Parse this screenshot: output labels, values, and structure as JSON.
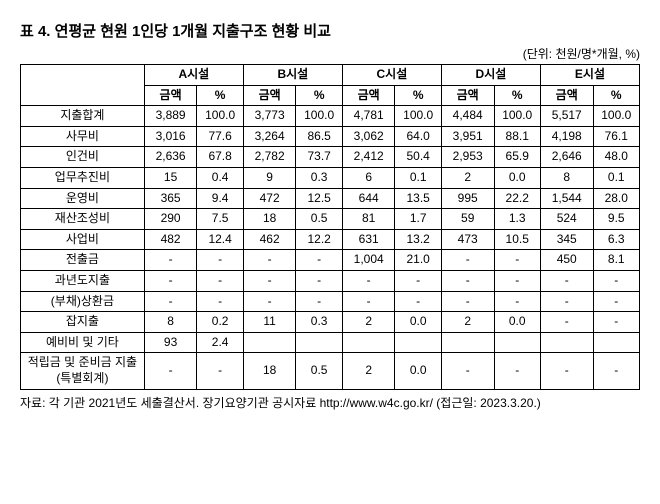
{
  "title": "표 4. 연평균 현원 1인당 1개월 지출구조 현황 비교",
  "unit": "(단위: 천원/명*개월, %)",
  "facilities": [
    "A시설",
    "B시설",
    "C시설",
    "D시설",
    "E시설"
  ],
  "subheaders": {
    "amount": "금액",
    "pct": "%"
  },
  "rows": [
    {
      "label": "지출합계",
      "vals": [
        [
          "3,889",
          "100.0"
        ],
        [
          "3,773",
          "100.0"
        ],
        [
          "4,781",
          "100.0"
        ],
        [
          "4,484",
          "100.0"
        ],
        [
          "5,517",
          "100.0"
        ]
      ]
    },
    {
      "label": "사무비",
      "vals": [
        [
          "3,016",
          "77.6"
        ],
        [
          "3,264",
          "86.5"
        ],
        [
          "3,062",
          "64.0"
        ],
        [
          "3,951",
          "88.1"
        ],
        [
          "4,198",
          "76.1"
        ]
      ]
    },
    {
      "label": "인건비",
      "vals": [
        [
          "2,636",
          "67.8"
        ],
        [
          "2,782",
          "73.7"
        ],
        [
          "2,412",
          "50.4"
        ],
        [
          "2,953",
          "65.9"
        ],
        [
          "2,646",
          "48.0"
        ]
      ]
    },
    {
      "label": "업무추진비",
      "vals": [
        [
          "15",
          "0.4"
        ],
        [
          "9",
          "0.3"
        ],
        [
          "6",
          "0.1"
        ],
        [
          "2",
          "0.0"
        ],
        [
          "8",
          "0.1"
        ]
      ]
    },
    {
      "label": "운영비",
      "vals": [
        [
          "365",
          "9.4"
        ],
        [
          "472",
          "12.5"
        ],
        [
          "644",
          "13.5"
        ],
        [
          "995",
          "22.2"
        ],
        [
          "1,544",
          "28.0"
        ]
      ]
    },
    {
      "label": "재산조성비",
      "vals": [
        [
          "290",
          "7.5"
        ],
        [
          "18",
          "0.5"
        ],
        [
          "81",
          "1.7"
        ],
        [
          "59",
          "1.3"
        ],
        [
          "524",
          "9.5"
        ]
      ]
    },
    {
      "label": "사업비",
      "vals": [
        [
          "482",
          "12.4"
        ],
        [
          "462",
          "12.2"
        ],
        [
          "631",
          "13.2"
        ],
        [
          "473",
          "10.5"
        ],
        [
          "345",
          "6.3"
        ]
      ]
    },
    {
      "label": "전출금",
      "vals": [
        [
          "-",
          "-"
        ],
        [
          "-",
          "-"
        ],
        [
          "1,004",
          "21.0"
        ],
        [
          "-",
          "-"
        ],
        [
          "450",
          "8.1"
        ]
      ]
    },
    {
      "label": "과년도지출",
      "vals": [
        [
          "-",
          "-"
        ],
        [
          "-",
          "-"
        ],
        [
          "-",
          "-"
        ],
        [
          "-",
          "-"
        ],
        [
          "-",
          "-"
        ]
      ]
    },
    {
      "label": "(부채)상환금",
      "vals": [
        [
          "-",
          "-"
        ],
        [
          "-",
          "-"
        ],
        [
          "-",
          "-"
        ],
        [
          "-",
          "-"
        ],
        [
          "-",
          "-"
        ]
      ]
    },
    {
      "label": "잡지출",
      "vals": [
        [
          "8",
          "0.2"
        ],
        [
          "11",
          "0.3"
        ],
        [
          "2",
          "0.0"
        ],
        [
          "2",
          "0.0"
        ],
        [
          "-",
          "-"
        ]
      ]
    },
    {
      "label": "예비비 및 기타",
      "vals": [
        [
          "93",
          "2.4"
        ],
        [
          "",
          ""
        ],
        [
          "",
          ""
        ],
        [
          "",
          ""
        ],
        [
          "",
          ""
        ]
      ]
    },
    {
      "label": "적립금 및 준비금 지출 (특별회계)",
      "vals": [
        [
          "-",
          "-"
        ],
        [
          "18",
          "0.5"
        ],
        [
          "2",
          "0.0"
        ],
        [
          "-",
          "-"
        ],
        [
          "-",
          "-"
        ]
      ]
    }
  ],
  "footnote": "자료: 각 기관 2021년도 세출결산서. 장기요양기관 공시자료 http://www.w4c.go.kr/ (접근일: 2023.3.20.)"
}
